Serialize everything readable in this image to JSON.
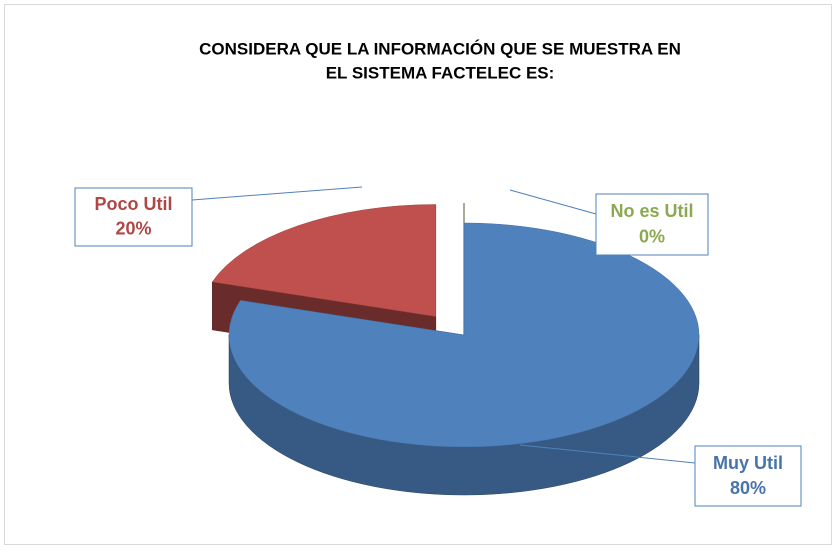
{
  "chart_data": {
    "type": "pie",
    "title_lines": [
      "CONSIDERA QUE LA  INFORMACIÓN QUE SE MUESTRA EN",
      "EL SISTEMA FACTELEC ES:"
    ],
    "categories": [
      "Muy Util",
      "Poco Util",
      "No es Util"
    ],
    "values": [
      80,
      20,
      0
    ],
    "value_labels": [
      "80%",
      "20%",
      "0%"
    ],
    "colors": [
      "#4f81bd",
      "#c0504d",
      "#9bbb59"
    ]
  }
}
